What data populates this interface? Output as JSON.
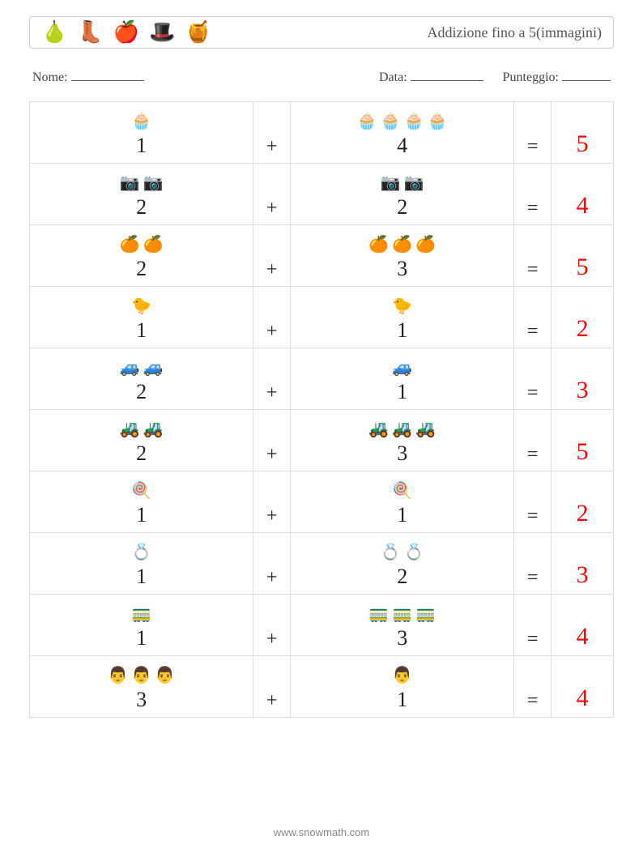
{
  "header": {
    "icons": [
      "🍐",
      "👢",
      "🍎",
      "🎩",
      "🍯"
    ],
    "title": "Addizione fino a 5(immagini)"
  },
  "info": {
    "name_label": "Nome:",
    "date_label": "Data:",
    "score_label": "Punteggio:"
  },
  "operators": {
    "plus": "+",
    "equals": "="
  },
  "answer_color": "#ff0000",
  "problems": [
    {
      "icon": "🧁",
      "a": 1,
      "b": 4,
      "answer": 5
    },
    {
      "icon": "📷",
      "a": 2,
      "b": 2,
      "answer": 4
    },
    {
      "icon": "🍊",
      "a": 2,
      "b": 3,
      "answer": 5
    },
    {
      "icon": "🐤",
      "a": 1,
      "b": 1,
      "answer": 2
    },
    {
      "icon": "🚙",
      "a": 2,
      "b": 1,
      "answer": 3
    },
    {
      "icon": "🚜",
      "a": 2,
      "b": 3,
      "answer": 5
    },
    {
      "icon": "🍭",
      "a": 1,
      "b": 1,
      "answer": 2
    },
    {
      "icon": "💍",
      "a": 1,
      "b": 2,
      "answer": 3
    },
    {
      "icon": "🚃",
      "a": 1,
      "b": 3,
      "answer": 4
    },
    {
      "icon": "👨",
      "a": 3,
      "b": 1,
      "answer": 4
    }
  ],
  "footer": "www.snowmath.com"
}
